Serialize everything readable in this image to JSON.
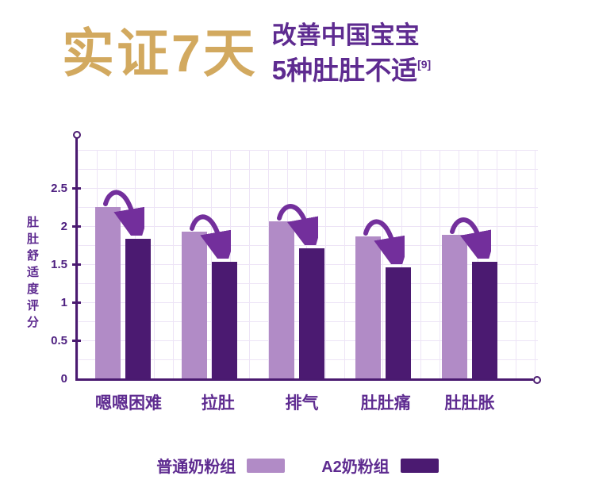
{
  "title": {
    "left": "实证7天",
    "right_line1": "改善中国宝宝",
    "right_line2": "5种肚肚不适",
    "right_sup": "[9]"
  },
  "colors": {
    "title_gold": "#d2a95f",
    "purple_text": "#5e2b90",
    "axis": "#4a1a70",
    "bar_light": "#b18bc6",
    "bar_dark": "#4b1a71",
    "arrow": "#732f9c",
    "tick_label": "#4e2080"
  },
  "chart_data": {
    "type": "bar",
    "title": "实证7天 改善中国宝宝5种肚肚不适[9]",
    "categories": [
      "嗯嗯困难",
      "拉肚",
      "排气",
      "肚肚痛",
      "肚肚胀"
    ],
    "series": [
      {
        "name": "普通奶粉组",
        "color": "#b18bc6",
        "values": [
          2.25,
          1.93,
          2.06,
          1.86,
          1.89
        ]
      },
      {
        "name": "A2奶粉组",
        "color": "#4b1a71",
        "values": [
          1.83,
          1.53,
          1.71,
          1.46,
          1.53
        ]
      }
    ],
    "ylabel": "肚肚舒适度评分",
    "xlabel": "",
    "yticks": [
      0,
      0.5,
      1,
      1.5,
      2,
      2.5
    ],
    "ylim": [
      0,
      2.5
    ],
    "grid": true,
    "legend_position": "bottom",
    "annotations": {
      "arrows": "curved decrease arrow from 普通奶粉组 bar down to A2奶粉组 bar in each category"
    }
  }
}
